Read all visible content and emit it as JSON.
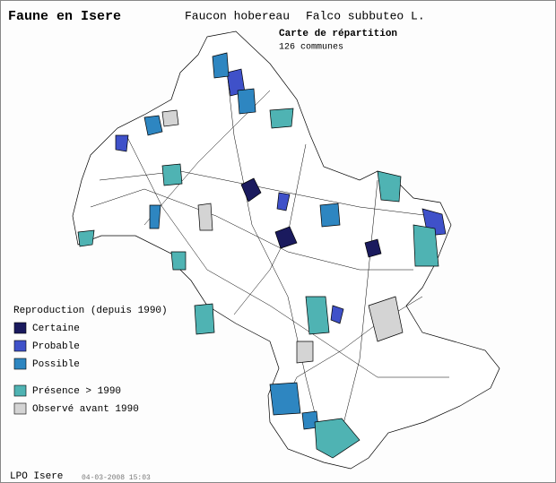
{
  "header": {
    "site": "Faune en Isere",
    "common_name": "Faucon hobereau",
    "latin_name": "Falco subbuteo L.",
    "map_title": "Carte de répartition",
    "count": "126 communes"
  },
  "legend": {
    "title": "Reproduction (depuis 1990)",
    "items": [
      {
        "label": "Certaine",
        "color": "#1a1a5e"
      },
      {
        "label": "Probable",
        "color": "#3f51c9"
      },
      {
        "label": "Possible",
        "color": "#2e86c1"
      },
      {
        "label": "Présence > 1990",
        "color": "#4fb3b3"
      },
      {
        "label": "Observé avant 1990",
        "color": "#d4d4d4"
      }
    ]
  },
  "footer": {
    "org": "LPO Isere",
    "date": "04-03-2008 15:03"
  }
}
